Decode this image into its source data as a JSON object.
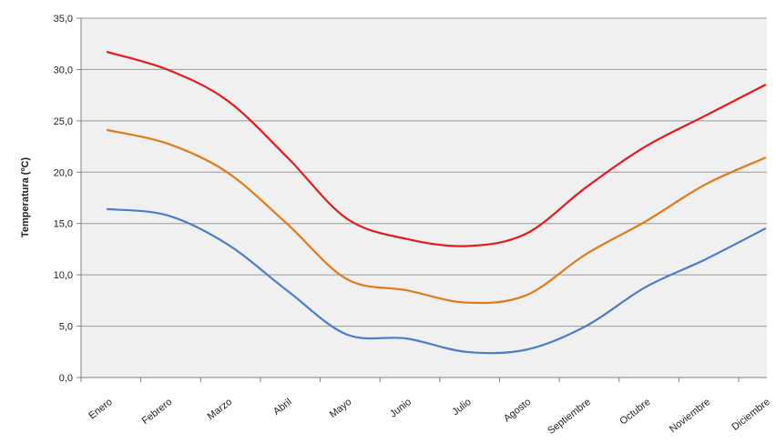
{
  "chart_data": {
    "type": "line",
    "title": "",
    "xlabel": "",
    "ylabel": "Temperatura (ºC)",
    "ylim": [
      0,
      35
    ],
    "y_ticks": [
      "0,0",
      "5,0",
      "10,0",
      "15,0",
      "20,0",
      "25,0",
      "30,0",
      "35,0"
    ],
    "categories": [
      "Enero",
      "Febrero",
      "Marzo",
      "Abril",
      "Mayo",
      "Junio",
      "Julio",
      "Agosto",
      "Septiembre",
      "Octubre",
      "Noviembre",
      "Diciembre"
    ],
    "grid": true,
    "legend": "none",
    "series": [
      {
        "color": "#e41a1c",
        "values": [
          31.7,
          30.0,
          27.0,
          21.5,
          15.5,
          13.5,
          12.8,
          14.0,
          18.5,
          22.5,
          25.5,
          28.5
        ]
      },
      {
        "color": "#e07b1a",
        "values": [
          24.1,
          22.8,
          20.0,
          15.0,
          9.6,
          8.5,
          7.3,
          8.0,
          12.0,
          15.2,
          18.8,
          21.4
        ]
      },
      {
        "color": "#4a7ec9",
        "values": [
          16.4,
          15.8,
          13.0,
          8.5,
          4.2,
          3.8,
          2.5,
          2.7,
          5.0,
          8.8,
          11.5,
          14.5
        ]
      }
    ]
  }
}
